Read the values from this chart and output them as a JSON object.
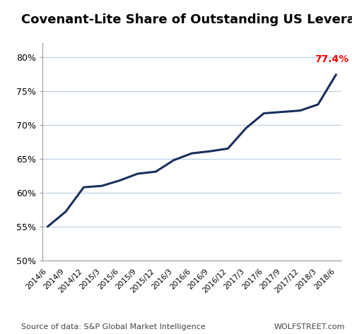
{
  "title": "Covenant-Lite Share of Outstanding US Leveraged Loans",
  "x_labels": [
    "2014/6",
    "2014/9",
    "2014/12",
    "2015/3",
    "2015/6",
    "2015/9",
    "2015/12",
    "2016/3",
    "2016/6",
    "2016/9",
    "2016/12",
    "2017/3",
    "2017/6",
    "2017/9",
    "2017/12",
    "2018/3",
    "2018/6"
  ],
  "y_values": [
    55.0,
    57.2,
    60.8,
    61.0,
    61.8,
    62.8,
    63.1,
    64.8,
    65.8,
    66.1,
    66.5,
    69.5,
    71.7,
    71.9,
    72.1,
    73.0,
    77.4
  ],
  "last_value_label": "77.4%",
  "last_value_color": "#ff0000",
  "line_color": "#1a2f5e",
  "line_width": 2.2,
  "ylim": [
    50,
    82
  ],
  "yticks": [
    50,
    55,
    60,
    65,
    70,
    75,
    80
  ],
  "grid_color": "#b8cce4",
  "background_color": "#ffffff",
  "footer_left": "Source of data: S&P Global Market Intelligence",
  "footer_right": "WOLFSTREET.com",
  "title_fontsize": 13,
  "tick_fontsize": 9,
  "xtick_fontsize": 7.5,
  "footer_fontsize": 8
}
